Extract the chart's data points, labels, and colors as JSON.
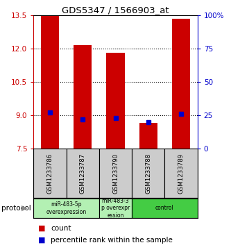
{
  "title": "GDS5347 / 1566903_at",
  "samples": [
    "GSM1233786",
    "GSM1233787",
    "GSM1233790",
    "GSM1233788",
    "GSM1233789"
  ],
  "bar_values": [
    13.45,
    12.15,
    11.8,
    8.65,
    13.35
  ],
  "percentile_values": [
    27,
    22,
    23,
    20,
    26
  ],
  "ymin": 7.5,
  "ymax": 13.5,
  "yticks_left": [
    7.5,
    9.0,
    10.5,
    12.0,
    13.5
  ],
  "yticks_right": [
    0,
    25,
    50,
    75,
    100
  ],
  "bar_color": "#cc0000",
  "dot_color": "#0000cc",
  "bar_width": 0.55,
  "grid_yticks": [
    9.0,
    10.5,
    12.0
  ],
  "protocol_groups": [
    {
      "label": "miR-483-5p\noverexpression",
      "start": 0,
      "end": 2,
      "color": "#b3f0b3"
    },
    {
      "label": "miR-483-3\np overexpr\nession",
      "start": 2,
      "end": 3,
      "color": "#b3f0b3"
    },
    {
      "label": "control",
      "start": 3,
      "end": 5,
      "color": "#44cc44"
    }
  ],
  "left_axis_color": "#cc0000",
  "right_axis_color": "#0000cc",
  "sample_box_color": "#cccccc",
  "protocol_label_lighter": "#b3f0b3",
  "protocol_label_darker": "#44cc44"
}
